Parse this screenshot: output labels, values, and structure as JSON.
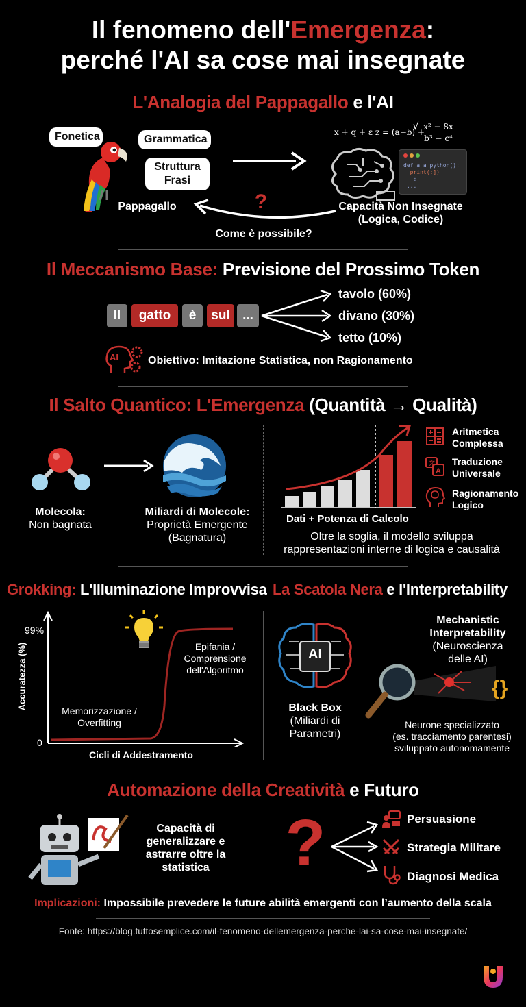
{
  "title": {
    "line1_prefix": "Il fenomeno dell'",
    "line1_highlight": "Emergenza",
    "line1_suffix": ":",
    "line2": "perché l'AI sa cose mai insegnate"
  },
  "section1": {
    "header_red": "L'Analogia del Pappagallo",
    "header_white": " e l'AI",
    "bubbles": [
      "Fonetica",
      "Grammatica",
      "Struttura\nFrasi"
    ],
    "parrot_label": "Pappagallo",
    "formula": "x + q + ε z = (a−b) +",
    "formula_num": "x² − 8x",
    "formula_den": "b³ − c⁴",
    "code_line1": "def a a python():",
    "code_line2": "print(:])",
    "code_line3": ":",
    "code_line4": "...",
    "ai_label": "Capacità Non Insegnate\n(Logica, Codice)",
    "question_mark": "?",
    "question": "Come è possibile?"
  },
  "section2": {
    "header_red": "Il Meccanismo Base:",
    "header_white": " Previsione del Prossimo Token",
    "tokens": [
      "Il",
      "gatto",
      "è",
      "sul",
      "..."
    ],
    "predictions": [
      "tavolo (60%)",
      "divano (30%)",
      "tetto (10%)"
    ],
    "ai_badge": "AI",
    "objective": "Obiettivo: Imitazione Statistica, non Ragionamento"
  },
  "section3": {
    "header_red": "Il Salto Quantico: L'Emergenza",
    "header_white": " (Quantità → Qualità)",
    "molecule_label_bold": "Molecola:",
    "molecule_label": "Non bagnata",
    "water_label_bold": "Miliardi di Molecole:",
    "water_label": "Proprietà Emergente\n(Bagnatura)",
    "chart_caption": "Dati + Potenza di Calcolo",
    "abilities": [
      "Aritmetica\nComplessa",
      "Traduzione\nUniversale",
      "Ragionamento\nLogico"
    ],
    "threshold_note": "Oltre la soglia, il modello sviluppa\nrappresentazioni interne di logica e causalità"
  },
  "section4": {
    "grok_header_red": "Grokking:",
    "grok_header_white": " L'Illuminazione Improvvisa",
    "y_axis": "Accuratezza (%)",
    "x_axis": "Cicli di Addestramento",
    "y_top": "99%",
    "y_zero": "0",
    "phase1": "Memorizzazione /\nOverfitting",
    "phase2": "Epifania /\nComprensione\ndell'Algoritmo",
    "box_header_red": "La Scatola Nera",
    "box_header_white": " e l'Interpretability",
    "chip_label": "AI",
    "blackbox_bold": "Black Box",
    "blackbox": "(Miliardi di\nParametri)",
    "mech_bold": "Mechanistic\nInterpretability",
    "mech": "(Neuroscienza\ndelle AI)",
    "braces": "{}",
    "neuron_note": "Neurone specializzato\n(es. tracciamento parentesi)\nsviluppato autonomamente"
  },
  "section5": {
    "header_red": "Automazione della Creatività",
    "header_white": " e Futuro",
    "generalize": "Capacità di\ngeneralizzare e\nastrarre oltre la\nstatistica",
    "question_mark": "?",
    "futures": [
      "Persuasione",
      "Strategia Militare",
      "Diagnosi Medica"
    ],
    "implications_red": "Implicazioni:",
    "implications_white": " Impossibile prevedere le future abilità emergenti con l’aumento della scala",
    "source": "Fonte: https://blog.tuttosemplice.com/il-fenomeno-dellemergenza-perche-lai-sa-cose-mai-insegnate/"
  },
  "colors": {
    "accent": "#c8322f",
    "background": "#000000"
  }
}
